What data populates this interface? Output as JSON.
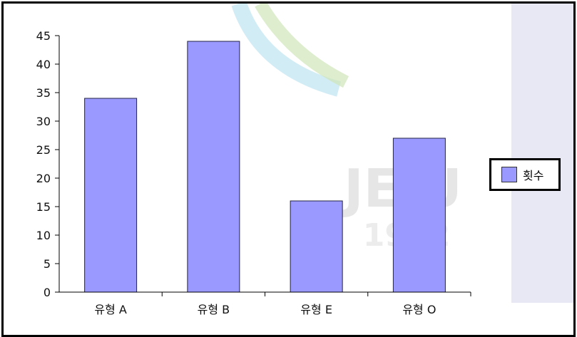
{
  "colors": {
    "bar": "#9999ff",
    "bar_stroke": "#222244",
    "axis": "#000000",
    "border": "#000000"
  },
  "watermark": {
    "text": "JEJU",
    "year": "1952"
  },
  "chart_data": {
    "type": "bar",
    "categories": [
      "유형 A",
      "유형 B",
      "유형 E",
      "유형 O"
    ],
    "series": [
      {
        "name": "횟수",
        "values": [
          34,
          44,
          16,
          27
        ]
      }
    ],
    "ylim": [
      0,
      45
    ],
    "yticks": [
      0,
      5,
      10,
      15,
      20,
      25,
      30,
      35,
      40,
      45
    ],
    "title": "",
    "xlabel": "",
    "ylabel": "",
    "grid": false,
    "legend": "right"
  }
}
